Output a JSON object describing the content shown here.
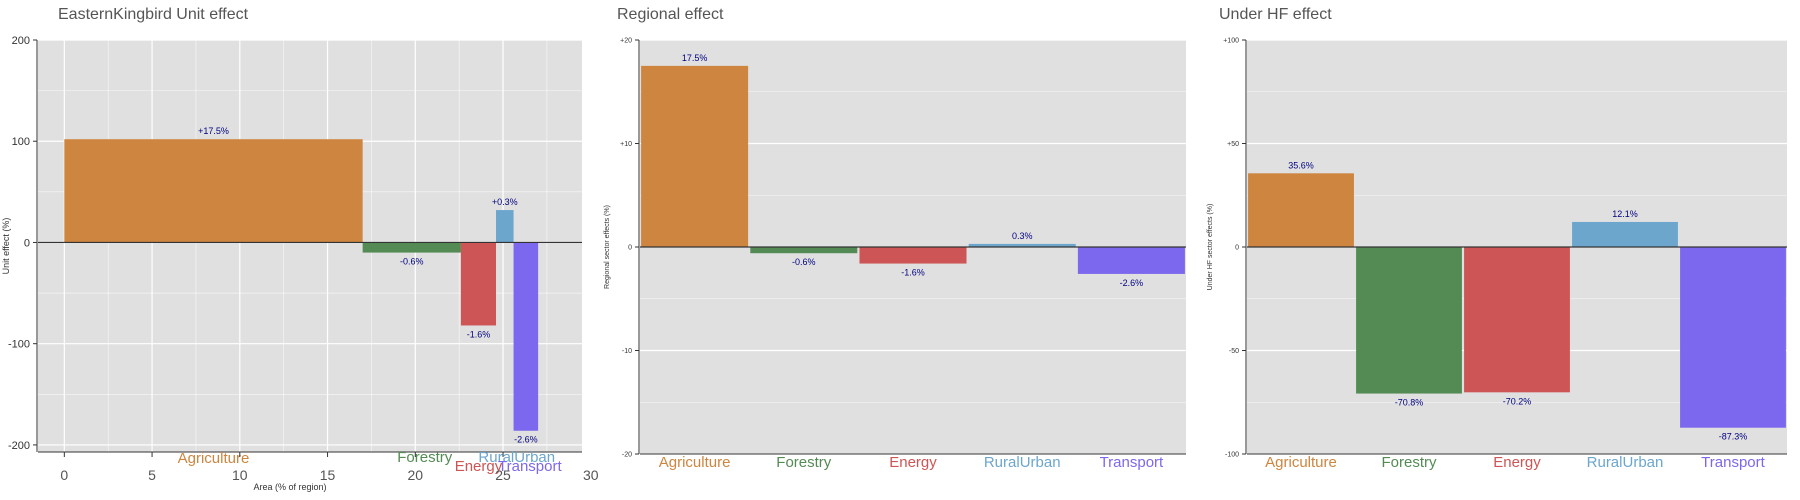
{
  "chart_data": [
    {
      "type": "bar",
      "title": "EasternKingbird Unit effect",
      "xlabel": "Area (% of region)",
      "ylabel": "Unit effect (%)",
      "xlim": [
        -1.5,
        29.5
      ],
      "ylim": [
        -207,
        200
      ],
      "xticks": [
        0,
        5,
        10,
        15,
        20,
        25,
        30
      ],
      "xtick_labels": [
        "0",
        "5",
        "10",
        "15",
        "20",
        "25",
        "30"
      ],
      "yticks": [
        -200,
        -100,
        0,
        100,
        200
      ],
      "ytick_labels": [
        "-200",
        "-100",
        "0",
        "100",
        "200"
      ],
      "grid": true,
      "categories": [
        "Agriculture",
        "Forestry",
        "Energy",
        "RuralUrban",
        "Transport"
      ],
      "x_start": [
        0,
        17,
        22.6,
        24.6,
        25.6
      ],
      "x_end": [
        17,
        22.6,
        24.6,
        25.6,
        27
      ],
      "values": [
        102,
        -10,
        -82,
        32,
        -186
      ],
      "data_labels": [
        "+17.5%",
        "-0.6%",
        "-1.6%",
        "+0.3%",
        "-2.6%"
      ],
      "category_labels": [
        "Agriculture",
        "Forestry",
        "Energy",
        "RuralUrban",
        "Transport"
      ],
      "colors": [
        "#CD853F",
        "#548B54",
        "#CD5555",
        "#6CA6CD",
        "#7B68EE"
      ]
    },
    {
      "type": "bar",
      "title": "Regional effect",
      "xlabel": "",
      "ylabel": "Regional sector effects (%)",
      "ylim": [
        -20,
        20
      ],
      "yticks": [
        -20,
        -10,
        0,
        10,
        20
      ],
      "ytick_labels": [
        "-20",
        "-10",
        "0",
        "+10",
        "+20"
      ],
      "grid": true,
      "categories": [
        "Agriculture",
        "Forestry",
        "Energy",
        "RuralUrban",
        "Transport"
      ],
      "values": [
        17.5,
        -0.6,
        -1.6,
        0.3,
        -2.6
      ],
      "data_labels": [
        "17.5%",
        "-0.6%",
        "-1.6%",
        "0.3%",
        "-2.6%"
      ],
      "colors": [
        "#CD853F",
        "#548B54",
        "#CD5555",
        "#6CA6CD",
        "#7B68EE"
      ]
    },
    {
      "type": "bar",
      "title": "Under HF effect",
      "xlabel": "",
      "ylabel": "Under HF sector effects (%)",
      "ylim": [
        -100,
        100
      ],
      "yticks": [
        -100,
        -50,
        0,
        50,
        100
      ],
      "ytick_labels": [
        "-100",
        "-50",
        "0",
        "+50",
        "+100"
      ],
      "grid": true,
      "categories": [
        "Agriculture",
        "Forestry",
        "Energy",
        "RuralUrban",
        "Transport"
      ],
      "values": [
        35.6,
        -70.8,
        -70.2,
        12.1,
        -87.3
      ],
      "data_labels": [
        "35.6%",
        "-70.8%",
        "-70.2%",
        "12.1%",
        "-87.3%"
      ],
      "colors": [
        "#CD853F",
        "#548B54",
        "#CD5555",
        "#6CA6CD",
        "#7B68EE"
      ]
    }
  ]
}
